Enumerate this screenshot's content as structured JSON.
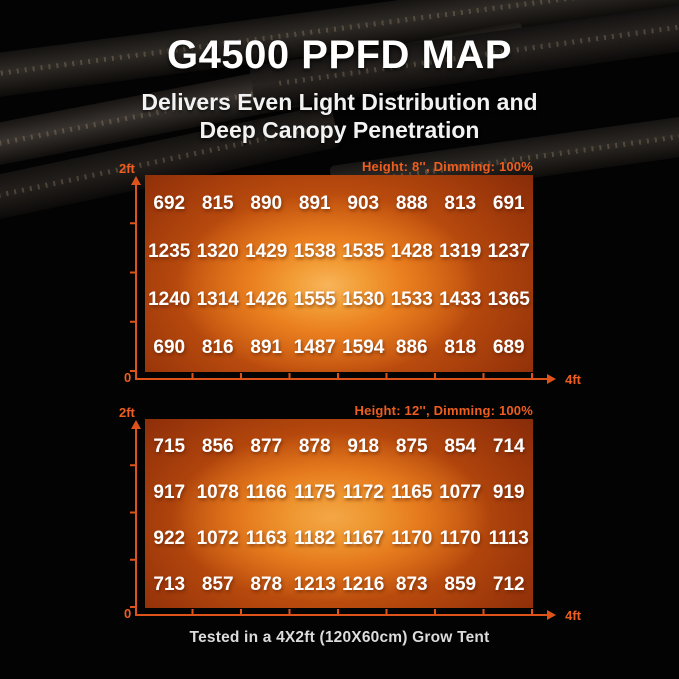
{
  "header": {
    "title": "G4500 PPFD MAP",
    "subtitle_line1": "Delivers Even Light Distribution and",
    "subtitle_line2": "Deep Canopy Penetration"
  },
  "footer": {
    "caption": "Tested in a 4X2ft (120X60cm) Grow Tent"
  },
  "colors": {
    "background": "#000000",
    "accent_orange": "#EE5E1E",
    "axis_orange": "#DE5319",
    "value_text": "#FFFFFF",
    "heat_center": "#F9B45A",
    "heat_edge": "#682007"
  },
  "chart_data": [
    {
      "type": "heatmap",
      "condition_label": "Height: 8'', Dimming: 100%",
      "y_axis": {
        "top_label": "2ft"
      },
      "x_axis": {
        "origin_label": "0",
        "end_label": "4ft"
      },
      "rows": [
        [
          692,
          815,
          890,
          891,
          903,
          888,
          813,
          691
        ],
        [
          1235,
          1320,
          1429,
          1538,
          1535,
          1428,
          1319,
          1237
        ],
        [
          1240,
          1314,
          1426,
          1555,
          1530,
          1533,
          1433,
          1365
        ],
        [
          690,
          816,
          891,
          1487,
          1594,
          886,
          818,
          689
        ]
      ]
    },
    {
      "type": "heatmap",
      "condition_label": "Height: 12'', Dimming: 100%",
      "y_axis": {
        "top_label": "2ft"
      },
      "x_axis": {
        "origin_label": "0",
        "end_label": "4ft"
      },
      "rows": [
        [
          715,
          856,
          877,
          878,
          918,
          875,
          854,
          714
        ],
        [
          917,
          1078,
          1166,
          1175,
          1172,
          1165,
          1077,
          919
        ],
        [
          922,
          1072,
          1163,
          1182,
          1167,
          1170,
          1170,
          1113
        ],
        [
          713,
          857,
          878,
          1213,
          1216,
          873,
          859,
          712
        ]
      ]
    }
  ]
}
